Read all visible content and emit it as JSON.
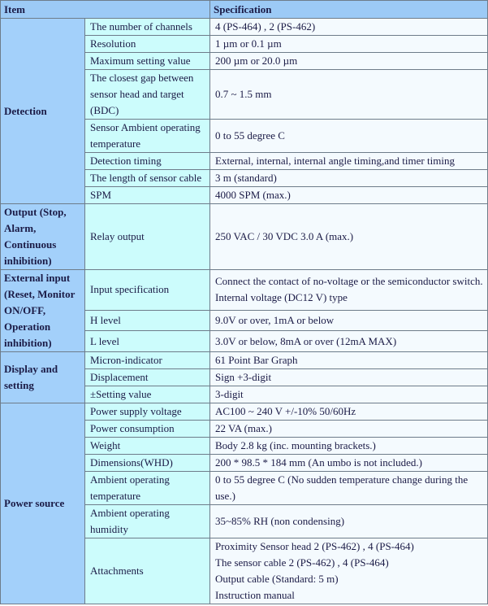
{
  "header": {
    "item": "Item",
    "specification": "Specification"
  },
  "colors": {
    "header_bg": "#9ccaf6",
    "group_bg": "#a3d0fa",
    "item_bg": "#ccfcfc",
    "spec_bg": "#f4fafe",
    "text": "#1b1b46"
  },
  "groups": [
    {
      "label": "Detection",
      "rows": [
        {
          "item": "The number of channels",
          "spec": [
            "4 (PS-464) , 2 (PS-462)"
          ]
        },
        {
          "item": "Resolution",
          "spec": [
            "1 µm or 0.1 µm"
          ]
        },
        {
          "item": "Maximum setting value",
          "spec": [
            "200 µm or 20.0 µm"
          ]
        },
        {
          "item": "The closest gap between sensor head and target (BDC)",
          "spec": [
            "0.7 ~ 1.5 mm"
          ]
        },
        {
          "item": "Sensor Ambient operating temperature",
          "spec": [
            "0 to 55 degree C"
          ]
        },
        {
          "item": "Detection timing",
          "spec": [
            "External, internal, internal angle timing,and timer timing"
          ]
        },
        {
          "item": "The length of sensor cable",
          "spec": [
            "3 m (standard)"
          ]
        },
        {
          "item": "SPM",
          "spec": [
            "4000 SPM (max.)"
          ]
        }
      ]
    },
    {
      "label": "Output (Stop, Alarm, Continuous inhibition)",
      "rows": [
        {
          "item": "Relay output",
          "spec": [
            "250 VAC / 30 VDC   3.0 A (max.)"
          ]
        }
      ]
    },
    {
      "label": "External input (Reset, Monitor ON/OFF, Operation inhibition)",
      "rows": [
        {
          "item": "Input specification",
          "spec": [
            "Connect the contact of no-voltage or the semiconductor switch.",
            "Internal voltage (DC12 V) type"
          ]
        },
        {
          "item": "H level",
          "spec": [
            "9.0V or over, 1mA or below"
          ]
        },
        {
          "item": "L level",
          "spec": [
            "3.0V or below, 8mA or over (12mA MAX)"
          ]
        }
      ]
    },
    {
      "label": "Display and setting",
      "rows": [
        {
          "item": "Micron-indicator",
          "spec": [
            "61 Point Bar Graph"
          ]
        },
        {
          "item": "Displacement",
          "spec": [
            "Sign +3-digit"
          ]
        },
        {
          "item": "±Setting value",
          "spec": [
            "3-digit"
          ]
        }
      ]
    },
    {
      "label": "Power source",
      "rows": [
        {
          "item": "Power supply voltage",
          "spec": [
            "AC100 ~ 240 V   +/-10%   50/60Hz"
          ]
        },
        {
          "item": "Power consumption",
          "spec": [
            "22 VA (max.)"
          ]
        },
        {
          "item": "Weight",
          "spec": [
            "Body 2.8 kg (inc. mounting brackets.)"
          ]
        },
        {
          "item": "Dimensions(WHD)",
          "spec": [
            "200 * 98.5 * 184 mm (An umbo is not included.)"
          ]
        },
        {
          "item": "Ambient operating temperature",
          "spec": [
            "0 to 55 degree C (No sudden temperature change during the use.)"
          ]
        },
        {
          "item": "Ambient operating humidity",
          "spec": [
            "35~85% RH (non condensing)"
          ]
        },
        {
          "item": "Attachments",
          "spec": [
            "Proximity Sensor head 2 (PS-462) , 4 (PS-464)",
            "The sensor cable 2 (PS-462) , 4 (PS-464)",
            "Output cable (Standard: 5 m)",
            "Instruction manual"
          ]
        }
      ]
    }
  ]
}
